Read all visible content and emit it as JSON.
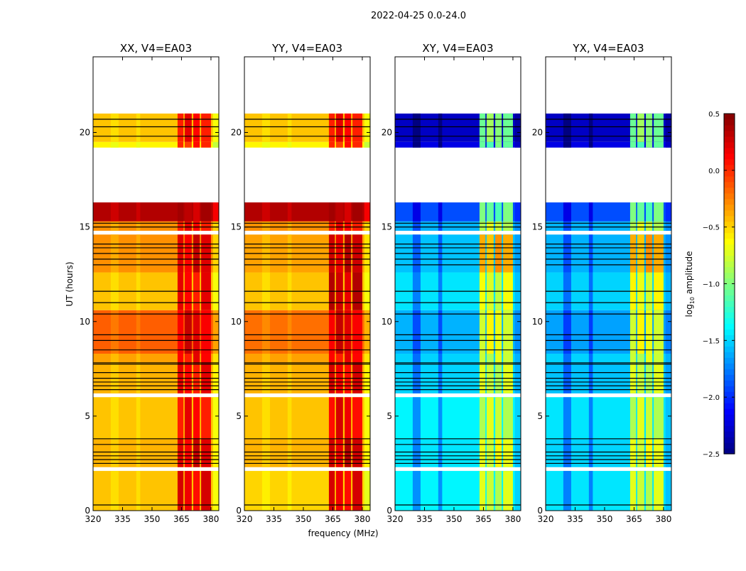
{
  "chart_data": {
    "type": "heatmap",
    "title": "2022-04-25 0.0-24.0",
    "xlabel": "frequency (MHz)",
    "ylabel": "UT (hours)",
    "xlim": [
      320,
      384
    ],
    "ylim": [
      0,
      24
    ],
    "xticks": [
      320,
      335,
      350,
      365,
      380
    ],
    "xtick_labels": [
      "320",
      "335",
      "350",
      "365",
      "380"
    ],
    "yticks": [
      0,
      5,
      10,
      15,
      20
    ],
    "ytick_labels": [
      "0",
      "5",
      "10",
      "15",
      "20"
    ],
    "colorbar": {
      "label_prefix": "log",
      "label_sub": "10",
      "label_suffix": " amplitude",
      "colormap": "jet",
      "range": [
        -2.5,
        0.5
      ],
      "ticks": [
        0.5,
        0.0,
        -0.5,
        -1.0,
        -1.5,
        -2.0,
        -2.5
      ],
      "tick_labels": [
        "0.5",
        "0.0",
        "−0.5",
        "−1.0",
        "−1.5",
        "−2.0",
        "−2.5"
      ]
    },
    "rfi_bands_mhz": [
      [
        363,
        366
      ],
      [
        366.6,
        370.2
      ],
      [
        371,
        374.3
      ],
      [
        375,
        380
      ]
    ],
    "dark_bands_mhz": [
      [
        329,
        333
      ],
      [
        342,
        344
      ]
    ],
    "gaps_hours": [
      [
        2.1,
        2.3
      ],
      [
        6.0,
        6.2
      ],
      [
        14.6,
        14.8
      ],
      [
        16.3,
        19.2
      ],
      [
        21.0,
        24.0
      ]
    ],
    "flagged_hours": [
      0.3,
      2.5,
      2.7,
      2.9,
      3.1,
      3.5,
      3.8,
      6.4,
      6.6,
      6.8,
      7.0,
      7.3,
      7.75,
      7.82,
      8.5,
      9.0,
      9.3,
      10.4,
      11.0,
      11.6,
      13.0,
      13.3,
      13.6,
      13.9,
      14.1,
      15.0,
      15.2,
      19.8,
      20.3,
      20.7
    ],
    "panels": [
      {
        "title": "XX, V4=EA03",
        "segments": [
          {
            "t": [
              0,
              2.1
            ],
            "base": -0.45,
            "rfi": 0.25
          },
          {
            "t": [
              2.3,
              3.8
            ],
            "base": -0.4,
            "rfi": 0.3
          },
          {
            "t": [
              3.8,
              6.0
            ],
            "base": -0.45,
            "rfi": 0.2
          },
          {
            "t": [
              6.2,
              7.8
            ],
            "base": -0.4,
            "rfi": 0.2
          },
          {
            "t": [
              7.8,
              8.3
            ],
            "base": -0.35,
            "rfi": 0.2
          },
          {
            "t": [
              8.3,
              10.6
            ],
            "base": -0.15,
            "rfi": 0.3
          },
          {
            "t": [
              10.6,
              12.6
            ],
            "base": -0.45,
            "rfi": 0.2
          },
          {
            "t": [
              12.6,
              14.6
            ],
            "base": -0.3,
            "rfi": 0.3
          },
          {
            "t": [
              14.8,
              15.3
            ],
            "base": -0.3,
            "rfi": 0.2
          },
          {
            "t": [
              15.3,
              16.3
            ],
            "base": 0.35,
            "rfi": 0.4
          },
          {
            "t": [
              19.2,
              19.5
            ],
            "base": -0.6,
            "rfi": 0.1
          },
          {
            "t": [
              19.5,
              21.0
            ],
            "base": -0.45,
            "rfi": 0.2
          }
        ]
      },
      {
        "title": "YY, V4=EA03",
        "segments": [
          {
            "t": [
              0,
              2.1
            ],
            "base": -0.5,
            "rfi": 0.25
          },
          {
            "t": [
              2.3,
              3.8
            ],
            "base": -0.4,
            "rfi": 0.35
          },
          {
            "t": [
              3.8,
              6.0
            ],
            "base": -0.45,
            "rfi": 0.25
          },
          {
            "t": [
              6.2,
              7.8
            ],
            "base": -0.4,
            "rfi": 0.25
          },
          {
            "t": [
              7.8,
              8.3
            ],
            "base": -0.35,
            "rfi": 0.2
          },
          {
            "t": [
              8.3,
              10.6
            ],
            "base": -0.2,
            "rfi": 0.3
          },
          {
            "t": [
              10.6,
              12.6
            ],
            "base": -0.45,
            "rfi": 0.35
          },
          {
            "t": [
              12.6,
              14.6
            ],
            "base": -0.35,
            "rfi": 0.35
          },
          {
            "t": [
              14.8,
              15.3
            ],
            "base": -0.3,
            "rfi": 0.2
          },
          {
            "t": [
              15.3,
              16.3
            ],
            "base": 0.35,
            "rfi": 0.4
          },
          {
            "t": [
              19.2,
              19.5
            ],
            "base": -0.6,
            "rfi": 0.1
          },
          {
            "t": [
              19.5,
              21.0
            ],
            "base": -0.45,
            "rfi": 0.2
          }
        ]
      },
      {
        "title": "XY, V4=EA03",
        "segments": [
          {
            "t": [
              0,
              2.1
            ],
            "base": -1.4,
            "rfi": -0.7
          },
          {
            "t": [
              2.3,
              3.8
            ],
            "base": -1.45,
            "rfi": -0.6
          },
          {
            "t": [
              3.8,
              6.0
            ],
            "base": -1.4,
            "rfi": -0.7
          },
          {
            "t": [
              6.2,
              7.8
            ],
            "base": -1.5,
            "rfi": -0.7
          },
          {
            "t": [
              7.8,
              8.3
            ],
            "base": -1.5,
            "rfi": -0.7
          },
          {
            "t": [
              8.3,
              10.6
            ],
            "base": -1.6,
            "rfi": -0.6
          },
          {
            "t": [
              10.6,
              12.6
            ],
            "base": -1.45,
            "rfi": -0.65
          },
          {
            "t": [
              12.6,
              14.6
            ],
            "base": -1.55,
            "rfi": -0.3
          },
          {
            "t": [
              14.8,
              15.3
            ],
            "base": -1.6,
            "rfi": -0.7
          },
          {
            "t": [
              15.3,
              16.3
            ],
            "base": -1.9,
            "rfi": -1.0
          },
          {
            "t": [
              19.2,
              19.5
            ],
            "base": -2.2,
            "rfi": -1.0
          },
          {
            "t": [
              19.5,
              21.0
            ],
            "base": -2.3,
            "rfi": -0.9
          }
        ]
      },
      {
        "title": "YX, V4=EA03",
        "segments": [
          {
            "t": [
              0,
              2.1
            ],
            "base": -1.45,
            "rfi": -0.7
          },
          {
            "t": [
              2.3,
              3.8
            ],
            "base": -1.5,
            "rfi": -0.6
          },
          {
            "t": [
              3.8,
              6.0
            ],
            "base": -1.45,
            "rfi": -0.7
          },
          {
            "t": [
              6.2,
              7.8
            ],
            "base": -1.55,
            "rfi": -0.7
          },
          {
            "t": [
              7.8,
              8.3
            ],
            "base": -1.5,
            "rfi": -0.7
          },
          {
            "t": [
              8.3,
              10.6
            ],
            "base": -1.65,
            "rfi": -0.6
          },
          {
            "t": [
              10.6,
              12.6
            ],
            "base": -1.5,
            "rfi": -0.6
          },
          {
            "t": [
              12.6,
              14.6
            ],
            "base": -1.6,
            "rfi": -0.3
          },
          {
            "t": [
              14.8,
              15.3
            ],
            "base": -1.6,
            "rfi": -0.7
          },
          {
            "t": [
              15.3,
              16.3
            ],
            "base": -1.9,
            "rfi": -1.0
          },
          {
            "t": [
              19.2,
              19.5
            ],
            "base": -2.2,
            "rfi": -1.0
          },
          {
            "t": [
              19.5,
              21.0
            ],
            "base": -2.3,
            "rfi": -0.9
          }
        ]
      }
    ]
  }
}
